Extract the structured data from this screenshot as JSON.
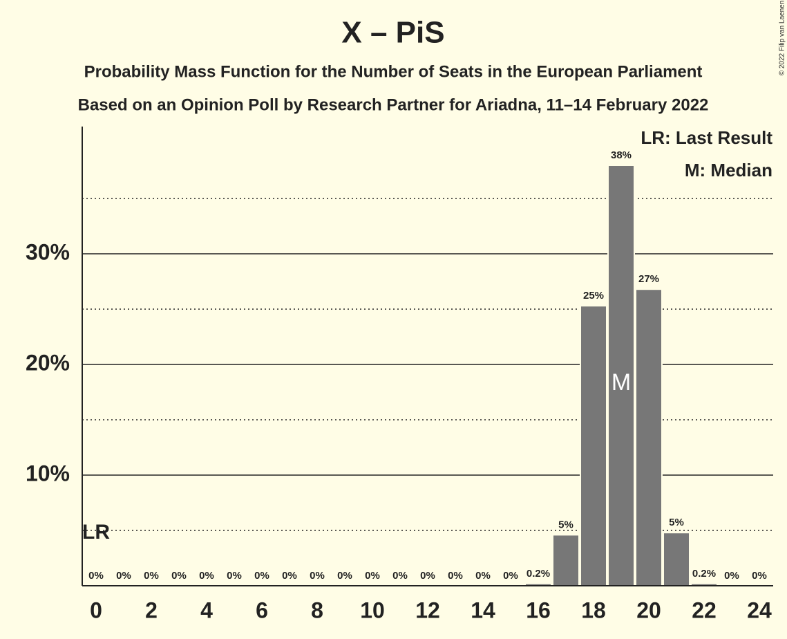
{
  "chart_data": {
    "type": "bar",
    "title": "X – PiS",
    "subtitle": [
      "Probability Mass Function for the Number of Seats in the European Parliament",
      "Based on an Opinion Poll by Research Partner for Ariadna, 11–14 February 2022"
    ],
    "copyright": "© 2022 Filip van Laenen",
    "categories": [
      0,
      null,
      2,
      null,
      4,
      null,
      6,
      null,
      8,
      null,
      10,
      null,
      12,
      null,
      14,
      null,
      16,
      null,
      18,
      null,
      20,
      null,
      22,
      null,
      24
    ],
    "values": [
      0,
      0,
      0,
      0,
      0,
      0,
      0,
      0,
      0,
      0,
      0,
      0,
      0,
      0,
      0,
      0,
      0.2,
      4.6,
      25.3,
      38.0,
      26.8,
      4.8,
      0.2,
      0,
      0
    ],
    "value_labels": [
      "0%",
      "0%",
      "0%",
      "0%",
      "0%",
      "0%",
      "0%",
      "0%",
      "0%",
      "0%",
      "0%",
      "0%",
      "0%",
      "0%",
      "0%",
      "0%",
      "0.2%",
      "5%",
      "25%",
      "38%",
      "27%",
      "5%",
      "0.2%",
      "0%",
      "0%"
    ],
    "color": "#777777",
    "ylim": [
      0,
      41.5
    ],
    "yticks": [
      {
        "value": 10,
        "label": "10%"
      },
      {
        "value": 20,
        "label": "20%"
      },
      {
        "value": 30,
        "label": "30%"
      }
    ],
    "minor_gridlines": [
      5,
      15,
      25,
      35
    ],
    "grid": true,
    "annotations": [
      {
        "category_index": 0,
        "text": "LR"
      },
      {
        "category_index": 19,
        "text": "M"
      }
    ],
    "legend": [
      "LR: Last Result",
      "M: Median"
    ]
  }
}
